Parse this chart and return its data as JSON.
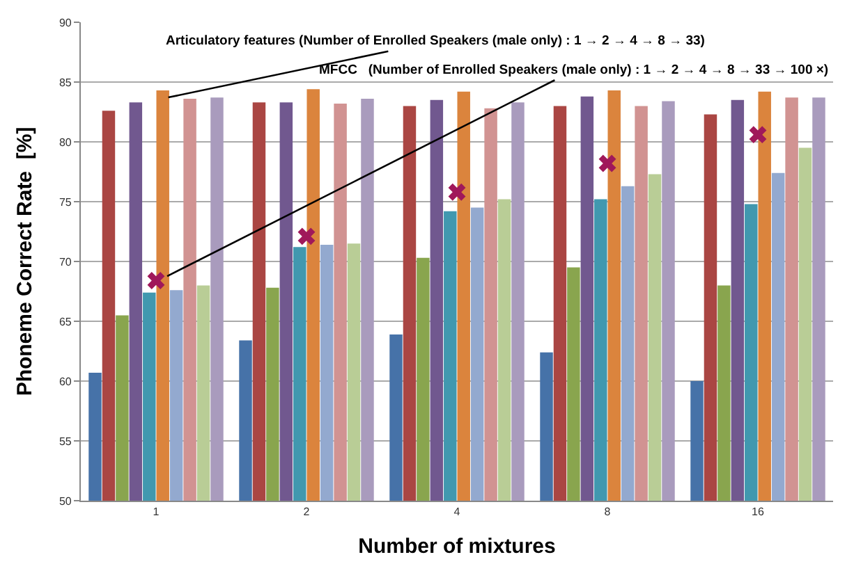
{
  "chart_data": {
    "type": "bar",
    "xlabel": "Number of mixtures",
    "ylabel": "Phoneme Correct Rate  [%]",
    "categories": [
      "1",
      "2",
      "4",
      "8",
      "16"
    ],
    "ylim": [
      50,
      90
    ],
    "yticks": [
      50,
      55,
      60,
      65,
      70,
      75,
      80,
      85,
      90
    ],
    "grid": "y",
    "legend": false,
    "series": [
      {
        "color": "#4672a8",
        "values": [
          60.7,
          63.4,
          63.9,
          62.4,
          60.0
        ]
      },
      {
        "color": "#aa4643",
        "values": [
          82.6,
          83.3,
          83.0,
          83.0,
          82.3
        ]
      },
      {
        "color": "#89a54e",
        "values": [
          65.5,
          67.8,
          70.3,
          69.5,
          68.0
        ]
      },
      {
        "color": "#71588f",
        "values": [
          83.3,
          83.3,
          83.5,
          83.8,
          83.5
        ]
      },
      {
        "color": "#4198af",
        "values": [
          67.4,
          71.2,
          74.2,
          75.2,
          74.8
        ]
      },
      {
        "color": "#db843d",
        "values": [
          84.3,
          84.4,
          84.2,
          84.3,
          84.2
        ]
      },
      {
        "color": "#93a9cf",
        "values": [
          67.6,
          71.4,
          74.5,
          76.3,
          77.4
        ]
      },
      {
        "color": "#d19392",
        "values": [
          83.6,
          83.2,
          82.8,
          83.0,
          83.7
        ]
      },
      {
        "color": "#b9cd96",
        "values": [
          68.0,
          71.5,
          75.2,
          77.3,
          79.5
        ]
      },
      {
        "color": "#a99bbd",
        "values": [
          83.7,
          83.6,
          83.3,
          83.4,
          83.7
        ]
      },
      {
        "type": "scatter",
        "marker": "cross",
        "color": "#a0185a",
        "x": [
          "1",
          "2",
          "4",
          "8",
          "16"
        ],
        "values": [
          68.4,
          72.1,
          75.8,
          78.2,
          80.6
        ]
      }
    ],
    "annotations": [
      {
        "text": "Articulatory features (Number of Enrolled Speakers (male only) : 1 → 2 → 4 → 8 → 33)",
        "x": "1",
        "y": 83.5
      },
      {
        "text": "MFCC   (Number of Enrolled Speakers (male only) : 1 → 2 → 4 → 8 → 33 → 100 ×)",
        "x": "1",
        "y": 68.3
      }
    ]
  }
}
